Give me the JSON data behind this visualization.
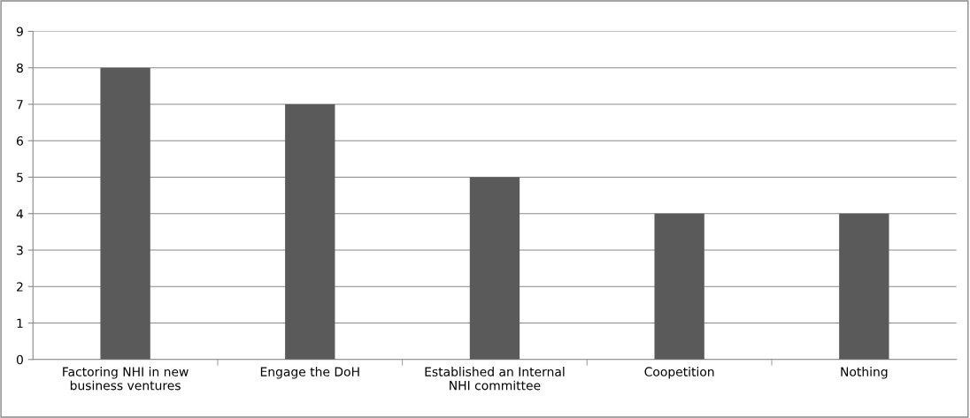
{
  "chart_data": {
    "type": "bar",
    "categories": [
      "Factoring NHI in new\nbusiness ventures",
      "Engage the DoH",
      "Established an Internal\nNHI committee",
      "Coopetition",
      "Nothing"
    ],
    "values": [
      8,
      7,
      5,
      4,
      4
    ],
    "color": "#5a5a5a",
    "ylim": [
      0,
      9
    ],
    "yticks": [
      0,
      1,
      2,
      3,
      4,
      5,
      6,
      7,
      8,
      9
    ],
    "grid": "y",
    "legend": false
  }
}
